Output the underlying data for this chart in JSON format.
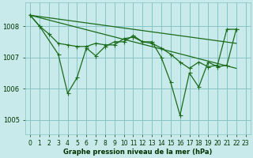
{
  "background_color": "#c8eaea",
  "grid_color": "#88c4c4",
  "line_color": "#1a6b1a",
  "xlabel": "Graphe pression niveau de la mer (hPa)",
  "ylim": [
    1004.55,
    1008.75
  ],
  "xlim": [
    -0.5,
    23.5
  ],
  "yticks": [
    1005,
    1006,
    1007,
    1008
  ],
  "xticks": [
    0,
    1,
    2,
    3,
    4,
    5,
    6,
    7,
    8,
    9,
    10,
    11,
    12,
    13,
    14,
    15,
    16,
    17,
    18,
    19,
    20,
    21,
    22,
    23
  ],
  "series": [
    {
      "x": [
        0,
        1,
        3,
        4,
        5,
        6,
        7,
        8,
        9,
        10,
        11,
        12,
        13,
        14,
        15,
        16,
        17,
        18,
        19,
        20,
        21,
        22
      ],
      "y": [
        1008.35,
        1008.0,
        1007.1,
        1005.85,
        1006.35,
        1007.3,
        1007.05,
        1007.35,
        1007.5,
        1007.5,
        1007.7,
        1007.5,
        1007.5,
        1007.0,
        1006.2,
        1005.15,
        1006.5,
        1006.05,
        1006.85,
        1006.7,
        1006.75,
        1007.9
      ],
      "markers": true
    },
    {
      "x": [
        0,
        1,
        2,
        3,
        4,
        5,
        6,
        7,
        8,
        9,
        10,
        11,
        12,
        13,
        14,
        15,
        16,
        17,
        18,
        19,
        20,
        21,
        22
      ],
      "y": [
        1008.35,
        1008.0,
        1007.75,
        1007.45,
        1007.4,
        1007.35,
        1007.35,
        1007.45,
        1007.4,
        1007.4,
        1007.6,
        1007.65,
        1007.5,
        1007.45,
        1007.3,
        1007.1,
        1006.85,
        1006.65,
        1006.85,
        1006.7,
        1006.75,
        1007.9,
        1007.9
      ],
      "markers": true
    },
    {
      "x": [
        0,
        22
      ],
      "y": [
        1008.35,
        1007.45
      ],
      "markers": false
    },
    {
      "x": [
        0,
        22
      ],
      "y": [
        1008.35,
        1006.65
      ],
      "markers": false
    }
  ],
  "tick_fontsize": 5.5,
  "xlabel_fontsize": 6.0,
  "xlabel_fontweight": "bold",
  "tick_color": "#003300",
  "marker_size": 2.0
}
